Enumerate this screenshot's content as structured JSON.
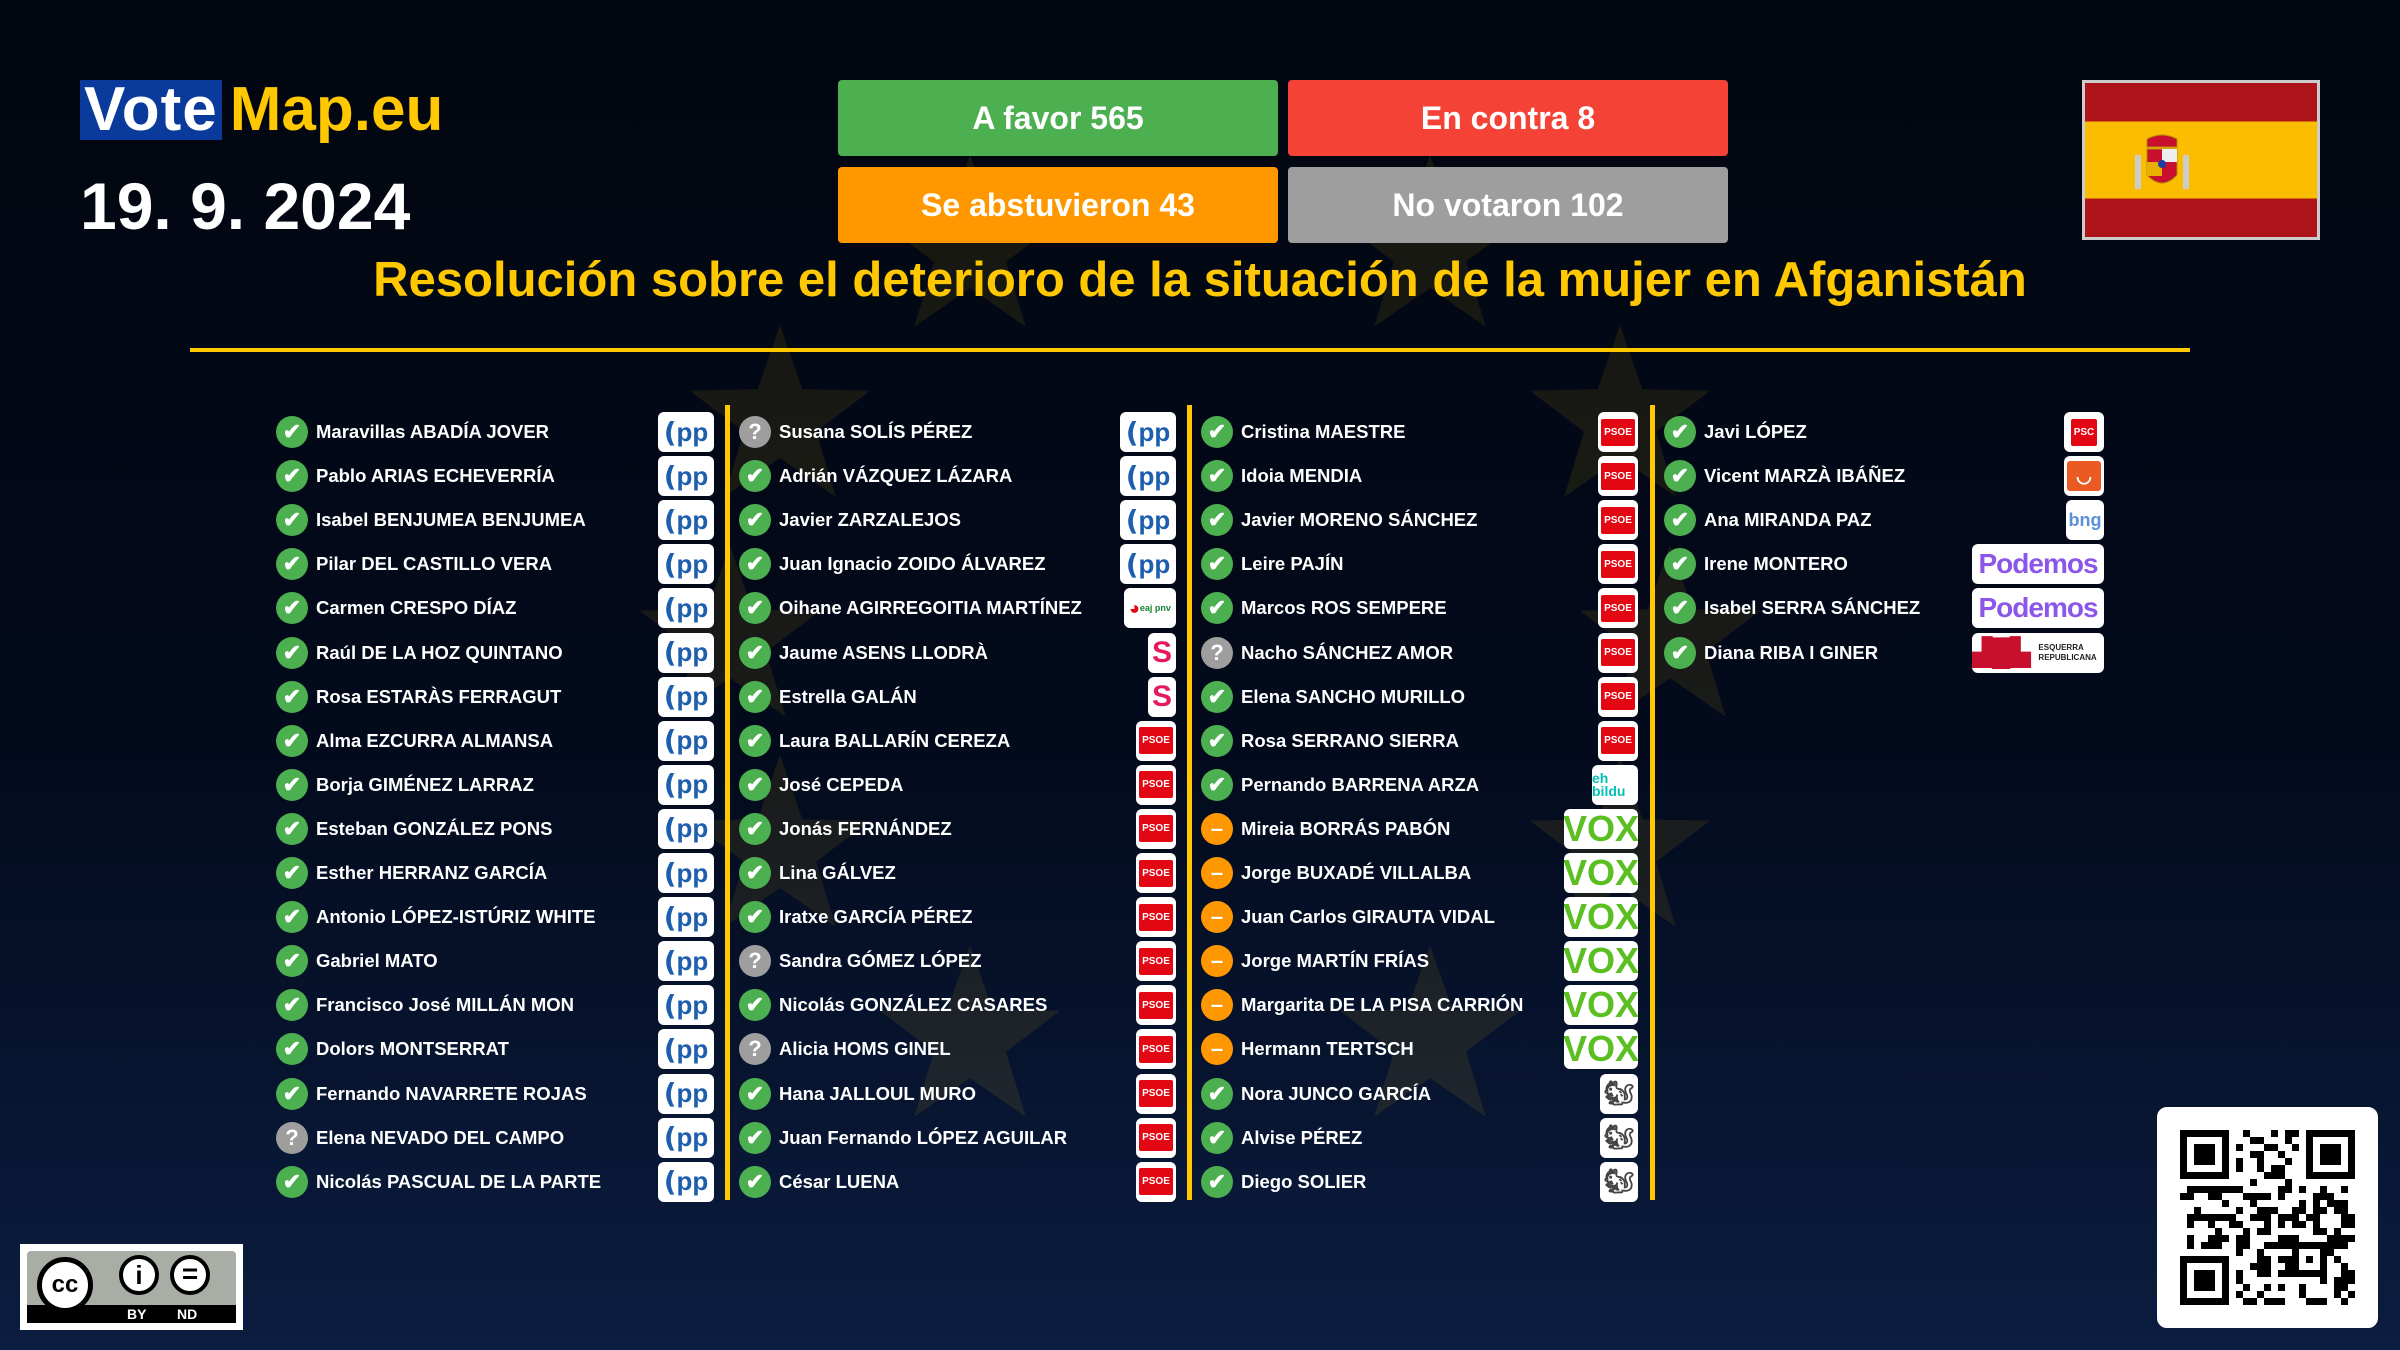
{
  "logo": {
    "vote": "Vote",
    "map": "Map.eu"
  },
  "date": "19. 9. 2024",
  "totals": {
    "favor": "A favor 565",
    "contra": "En contra 8",
    "abst": "Se abstuvieron 43",
    "novot": "No votaron 102"
  },
  "colors": {
    "favor": "#4caf50",
    "contra": "#f44336",
    "abst": "#ff9800",
    "novot": "#9e9e9e",
    "accent": "#ffc800"
  },
  "title": "Resolución sobre el deterioro de la situación de la mujer en Afganistán",
  "flag": "spain-flag",
  "license": {
    "by": "BY",
    "nd": "ND",
    "cc": "cc"
  },
  "columns": [
    [
      [
        "Maravillas ABADÍA JOVER",
        "for",
        "PP"
      ],
      [
        "Pablo ARIAS ECHEVERRÍA",
        "for",
        "PP"
      ],
      [
        "Isabel BENJUMEA BENJUMEA",
        "for",
        "PP"
      ],
      [
        "Pilar DEL CASTILLO VERA",
        "for",
        "PP"
      ],
      [
        "Carmen CRESPO DÍAZ",
        "for",
        "PP"
      ],
      [
        "Raúl DE LA HOZ QUINTANO",
        "for",
        "PP"
      ],
      [
        "Rosa ESTARÀS FERRAGUT",
        "for",
        "PP"
      ],
      [
        "Alma EZCURRA ALMANSA",
        "for",
        "PP"
      ],
      [
        "Borja GIMÉNEZ LARRAZ",
        "for",
        "PP"
      ],
      [
        "Esteban GONZÁLEZ PONS",
        "for",
        "PP"
      ],
      [
        "Esther HERRANZ GARCÍA",
        "for",
        "PP"
      ],
      [
        "Antonio LÓPEZ-ISTÚRIZ WHITE",
        "for",
        "PP"
      ],
      [
        "Gabriel MATO",
        "for",
        "PP"
      ],
      [
        "Francisco José MILLÁN MON",
        "for",
        "PP"
      ],
      [
        "Dolors MONTSERRAT",
        "for",
        "PP"
      ],
      [
        "Fernando NAVARRETE ROJAS",
        "for",
        "PP"
      ],
      [
        "Elena NEVADO DEL CAMPO",
        "nv",
        "PP"
      ],
      [
        "Nicolás PASCUAL DE LA PARTE",
        "for",
        "PP"
      ]
    ],
    [
      [
        "Susana SOLÍS PÉREZ",
        "nv",
        "PP"
      ],
      [
        "Adrián VÁZQUEZ LÁZARA",
        "for",
        "PP"
      ],
      [
        "Javier ZARZALEJOS",
        "for",
        "PP"
      ],
      [
        "Juan Ignacio ZOIDO ÁLVAREZ",
        "for",
        "PP"
      ],
      [
        "Oihane AGIRREGOITIA MARTÍNEZ",
        "for",
        "EAJ-PNV"
      ],
      [
        "Jaume ASENS LLODRÀ",
        "for",
        "Sumar"
      ],
      [
        "Estrella GALÁN",
        "for",
        "Sumar"
      ],
      [
        "Laura BALLARÍN CEREZA",
        "for",
        "PSOE"
      ],
      [
        "José CEPEDA",
        "for",
        "PSOE"
      ],
      [
        "Jonás FERNÁNDEZ",
        "for",
        "PSOE"
      ],
      [
        "Lina GÁLVEZ",
        "for",
        "PSOE"
      ],
      [
        "Iratxe GARCÍA PÉREZ",
        "for",
        "PSOE"
      ],
      [
        "Sandra GÓMEZ LÓPEZ",
        "nv",
        "PSOE"
      ],
      [
        "Nicolás GONZÁLEZ CASARES",
        "for",
        "PSOE"
      ],
      [
        "Alicia HOMS GINEL",
        "nv",
        "PSOE"
      ],
      [
        "Hana JALLOUL MURO",
        "for",
        "PSOE"
      ],
      [
        "Juan Fernando LÓPEZ AGUILAR",
        "for",
        "PSOE"
      ],
      [
        "César LUENA",
        "for",
        "PSOE"
      ]
    ],
    [
      [
        "Cristina MAESTRE",
        "for",
        "PSOE"
      ],
      [
        "Idoia MENDIA",
        "for",
        "PSOE"
      ],
      [
        "Javier MORENO SÁNCHEZ",
        "for",
        "PSOE"
      ],
      [
        "Leire PAJÍN",
        "for",
        "PSOE"
      ],
      [
        "Marcos ROS SEMPERE",
        "for",
        "PSOE"
      ],
      [
        "Nacho SÁNCHEZ AMOR",
        "nv",
        "PSOE"
      ],
      [
        "Elena SANCHO MURILLO",
        "for",
        "PSOE"
      ],
      [
        "Rosa SERRANO SIERRA",
        "for",
        "PSOE"
      ],
      [
        "Pernando BARRENA ARZA",
        "for",
        "EH Bildu"
      ],
      [
        "Mireia BORRÁS PABÓN",
        "abst",
        "VOX"
      ],
      [
        "Jorge BUXADÉ VILLALBA",
        "abst",
        "VOX"
      ],
      [
        "Juan Carlos GIRAUTA VIDAL",
        "abst",
        "VOX"
      ],
      [
        "Jorge MARTÍN FRÍAS",
        "abst",
        "VOX"
      ],
      [
        "Margarita DE LA PISA CARRIÓN",
        "abst",
        "VOX"
      ],
      [
        "Hermann TERTSCH",
        "abst",
        "VOX"
      ],
      [
        "Nora JUNCO GARCÍA",
        "for",
        "SALF"
      ],
      [
        "Alvise PÉREZ",
        "for",
        "SALF"
      ],
      [
        "Diego SOLIER",
        "for",
        "SALF"
      ]
    ],
    [
      [
        "Javi LÓPEZ",
        "for",
        "PSC"
      ],
      [
        "Vicent MARZÀ IBÁÑEZ",
        "for",
        "Compromís"
      ],
      [
        "Ana MIRANDA PAZ",
        "for",
        "BNG"
      ],
      [
        "Irene MONTERO",
        "for",
        "Podemos"
      ],
      [
        "Isabel SERRA SÁNCHEZ",
        "for",
        "Podemos"
      ],
      [
        "Diana RIBA I GINER",
        "for",
        "ERC"
      ]
    ]
  ],
  "party_logos": {
    "PP": "PP",
    "PSOE": "PSOE",
    "EAJ-PNV": "eaj pnv",
    "Sumar": "S",
    "EH Bildu": "eh bildu",
    "VOX": "VOX",
    "SALF": "squirrel",
    "PSC": "PSC",
    "Compromís": "smile",
    "BNG": "bng",
    "Podemos": "Podemos",
    "ERC": "ESQUERRA REPUBLICANA"
  }
}
